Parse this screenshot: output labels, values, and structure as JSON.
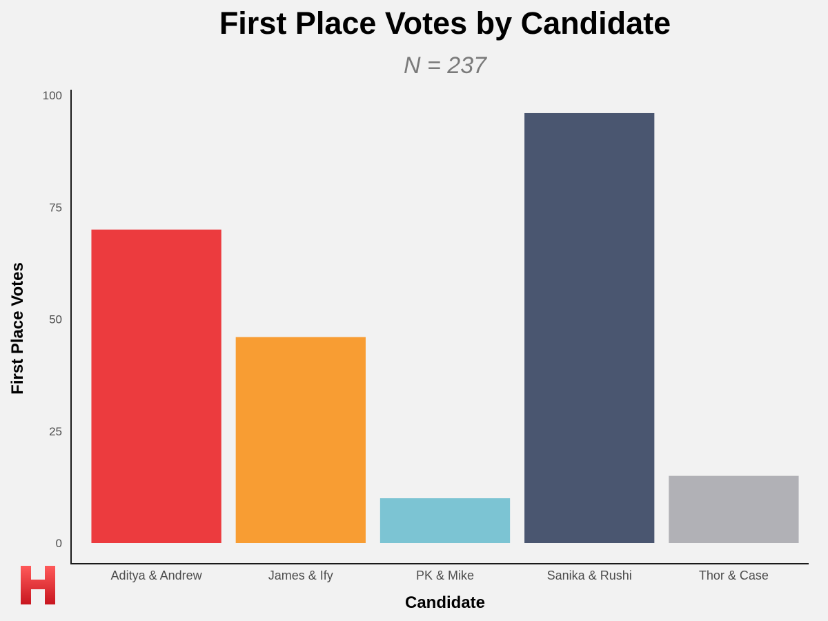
{
  "chart_data": {
    "type": "bar",
    "title": "First Place Votes by Candidate",
    "subtitle": "N = 237",
    "xlabel": "Candidate",
    "ylabel": "First Place Votes",
    "categories": [
      "Aditya & Andrew",
      "James & Ify",
      "PK & Mike",
      "Sanika & Rushi",
      "Thor & Case"
    ],
    "values": [
      70,
      46,
      10,
      96,
      15
    ],
    "colors": [
      "#ec3b3e",
      "#f89d33",
      "#7cc4d3",
      "#4a5670",
      "#b1b1b6"
    ],
    "ylim": [
      0,
      100
    ],
    "yticks": [
      0,
      25,
      50,
      75,
      100
    ],
    "grid": false,
    "legend": "none"
  },
  "logo": {
    "icon": "h-logo-icon",
    "letter": "H",
    "color": "#e52d36"
  }
}
